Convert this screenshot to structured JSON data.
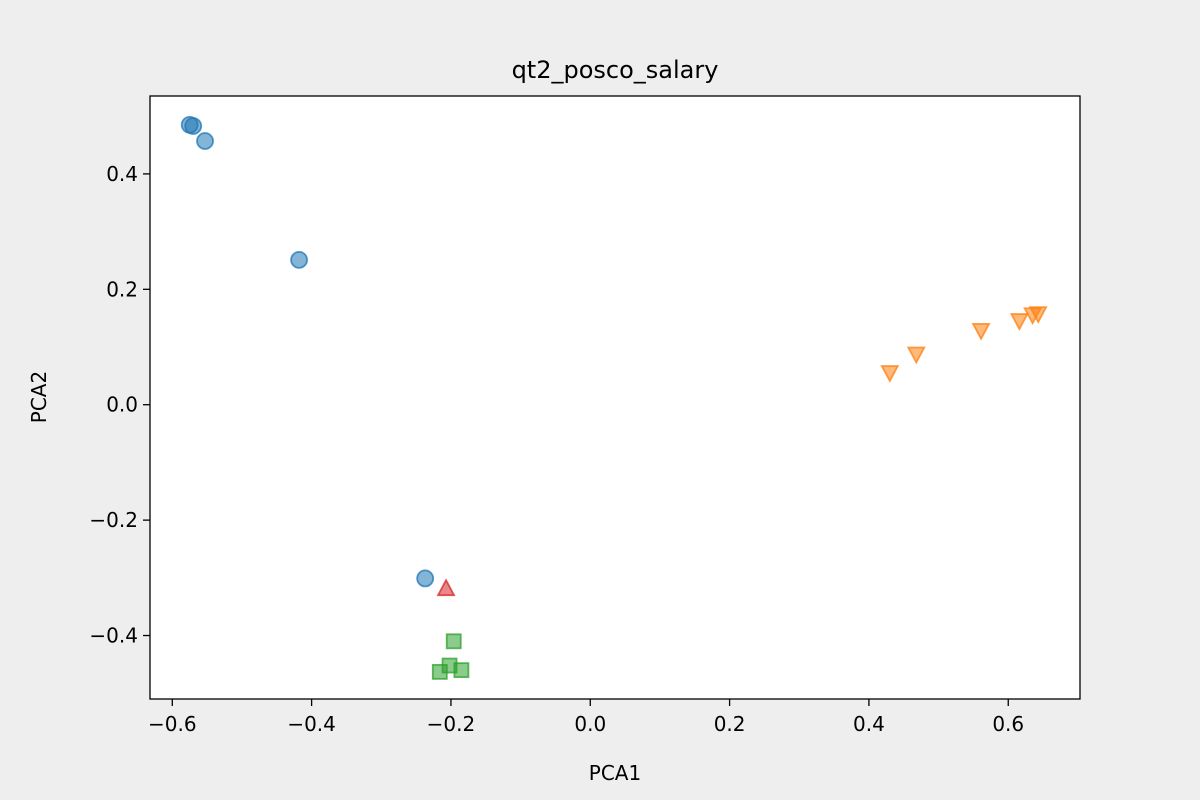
{
  "chart_data": {
    "type": "scatter",
    "title": "qt2_posco_salary",
    "xlabel": "PCA1",
    "ylabel": "PCA2",
    "xlim": [
      -0.632,
      0.703
    ],
    "ylim": [
      -0.51,
      0.535
    ],
    "xticks": [
      -0.6,
      -0.4,
      -0.2,
      0.0,
      0.2,
      0.4,
      0.6
    ],
    "xtick_labels": [
      "−0.6",
      "−0.4",
      "−0.2",
      "0.0",
      "0.2",
      "0.4",
      "0.6"
    ],
    "yticks": [
      -0.4,
      -0.2,
      0.0,
      0.2,
      0.4
    ],
    "ytick_labels": [
      "−0.4",
      "−0.2",
      "0.0",
      "0.2",
      "0.4"
    ],
    "grid": false,
    "series": [
      {
        "marker": "circle",
        "color": "#1f77b4",
        "points": [
          {
            "x": -0.575,
            "y": 0.485
          },
          {
            "x": -0.57,
            "y": 0.483
          },
          {
            "x": -0.553,
            "y": 0.457
          },
          {
            "x": -0.418,
            "y": 0.251
          },
          {
            "x": -0.237,
            "y": -0.301
          }
        ]
      },
      {
        "marker": "triangle-down",
        "color": "#ff7f0e",
        "points": [
          {
            "x": 0.43,
            "y": 0.055
          },
          {
            "x": 0.468,
            "y": 0.087
          },
          {
            "x": 0.561,
            "y": 0.128
          },
          {
            "x": 0.616,
            "y": 0.145
          },
          {
            "x": 0.635,
            "y": 0.155
          },
          {
            "x": 0.643,
            "y": 0.157
          }
        ]
      },
      {
        "marker": "square",
        "color": "#2ca02c",
        "points": [
          {
            "x": -0.196,
            "y": -0.41
          },
          {
            "x": -0.202,
            "y": -0.452
          },
          {
            "x": -0.185,
            "y": -0.46
          },
          {
            "x": -0.216,
            "y": -0.463
          }
        ]
      },
      {
        "marker": "triangle-up",
        "color": "#d62728",
        "points": [
          {
            "x": -0.207,
            "y": -0.318
          }
        ]
      }
    ]
  }
}
